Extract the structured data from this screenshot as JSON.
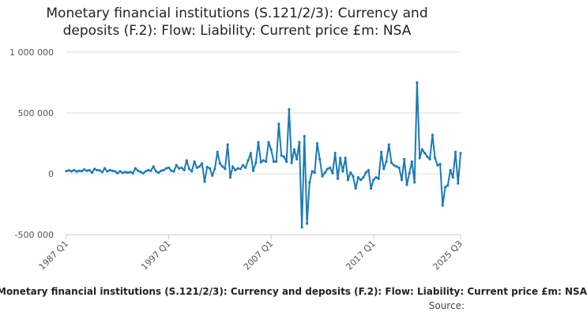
{
  "chart_data": {
    "type": "line",
    "title": "Monetary financial institutions (S.121/2/3): Currency and deposits (F.2): Flow: Liability: Current price £m: NSA",
    "caption": "Monetary financial institutions (S.121/2/3): Currency and deposits (F.2): Flow: Liability: Current price £m: NSA",
    "source_label": "Source:",
    "xlabel": "",
    "ylabel": "",
    "ylim": [
      -500000,
      1000000
    ],
    "y_ticks": [
      {
        "value": 1000000,
        "label": "1 000 000"
      },
      {
        "value": 500000,
        "label": "500 000"
      },
      {
        "value": 0,
        "label": "0"
      },
      {
        "value": -500000,
        "label": "-500 000"
      }
    ],
    "x_range": [
      "1987 Q1",
      "2025 Q3"
    ],
    "x_ticks": [
      "1987 Q1",
      "1997 Q1",
      "2007 Q1",
      "2017 Q1",
      "2025 Q3"
    ],
    "grid": {
      "horizontal": true,
      "vertical": false
    },
    "series": [
      {
        "color": "#1b7ab8",
        "points": [
          [
            "1987 Q1",
            22000
          ],
          [
            "1987 Q2",
            28000
          ],
          [
            "1987 Q3",
            20000
          ],
          [
            "1987 Q4",
            30000
          ],
          [
            "1988 Q1",
            18000
          ],
          [
            "1988 Q2",
            25000
          ],
          [
            "1988 Q3",
            22000
          ],
          [
            "1988 Q4",
            35000
          ],
          [
            "1989 Q1",
            25000
          ],
          [
            "1989 Q2",
            30000
          ],
          [
            "1989 Q3",
            10000
          ],
          [
            "1989 Q4",
            40000
          ],
          [
            "1990 Q1",
            30000
          ],
          [
            "1990 Q2",
            28000
          ],
          [
            "1990 Q3",
            15000
          ],
          [
            "1990 Q4",
            45000
          ],
          [
            "1991 Q1",
            20000
          ],
          [
            "1991 Q2",
            30000
          ],
          [
            "1991 Q3",
            25000
          ],
          [
            "1991 Q4",
            20000
          ],
          [
            "1992 Q1",
            5000
          ],
          [
            "1992 Q2",
            20000
          ],
          [
            "1992 Q3",
            8000
          ],
          [
            "1992 Q4",
            15000
          ],
          [
            "1993 Q1",
            10000
          ],
          [
            "1993 Q2",
            15000
          ],
          [
            "1993 Q3",
            5000
          ],
          [
            "1993 Q4",
            45000
          ],
          [
            "1994 Q1",
            25000
          ],
          [
            "1994 Q2",
            15000
          ],
          [
            "1994 Q3",
            5000
          ],
          [
            "1994 Q4",
            20000
          ],
          [
            "1995 Q1",
            30000
          ],
          [
            "1995 Q2",
            25000
          ],
          [
            "1995 Q3",
            60000
          ],
          [
            "1995 Q4",
            20000
          ],
          [
            "1996 Q1",
            10000
          ],
          [
            "1996 Q2",
            25000
          ],
          [
            "1996 Q3",
            30000
          ],
          [
            "1996 Q4",
            45000
          ],
          [
            "1997 Q1",
            50000
          ],
          [
            "1997 Q2",
            25000
          ],
          [
            "1997 Q3",
            20000
          ],
          [
            "1997 Q4",
            70000
          ],
          [
            "1998 Q1",
            45000
          ],
          [
            "1998 Q2",
            50000
          ],
          [
            "1998 Q3",
            30000
          ],
          [
            "1998 Q4",
            110000
          ],
          [
            "1999 Q1",
            40000
          ],
          [
            "1999 Q2",
            20000
          ],
          [
            "1999 Q3",
            100000
          ],
          [
            "1999 Q4",
            50000
          ],
          [
            "2000 Q1",
            60000
          ],
          [
            "2000 Q2",
            85000
          ],
          [
            "2000 Q3",
            -65000
          ],
          [
            "2000 Q4",
            55000
          ],
          [
            "2001 Q1",
            45000
          ],
          [
            "2001 Q2",
            -15000
          ],
          [
            "2001 Q3",
            40000
          ],
          [
            "2001 Q4",
            180000
          ],
          [
            "2002 Q1",
            85000
          ],
          [
            "2002 Q2",
            60000
          ],
          [
            "2002 Q3",
            40000
          ],
          [
            "2002 Q4",
            240000
          ],
          [
            "2003 Q1",
            -30000
          ],
          [
            "2003 Q2",
            60000
          ],
          [
            "2003 Q3",
            30000
          ],
          [
            "2003 Q4",
            45000
          ],
          [
            "2004 Q1",
            40000
          ],
          [
            "2004 Q2",
            70000
          ],
          [
            "2004 Q3",
            50000
          ],
          [
            "2004 Q4",
            110000
          ],
          [
            "2005 Q1",
            170000
          ],
          [
            "2005 Q2",
            25000
          ],
          [
            "2005 Q3",
            90000
          ],
          [
            "2005 Q4",
            260000
          ],
          [
            "2006 Q1",
            95000
          ],
          [
            "2006 Q2",
            110000
          ],
          [
            "2006 Q3",
            100000
          ],
          [
            "2006 Q4",
            260000
          ],
          [
            "2007 Q1",
            200000
          ],
          [
            "2007 Q2",
            100000
          ],
          [
            "2007 Q3",
            100000
          ],
          [
            "2007 Q4",
            410000
          ],
          [
            "2008 Q1",
            150000
          ],
          [
            "2008 Q2",
            140000
          ],
          [
            "2008 Q3",
            100000
          ],
          [
            "2008 Q4",
            530000
          ],
          [
            "2009 Q1",
            90000
          ],
          [
            "2009 Q2",
            200000
          ],
          [
            "2009 Q3",
            120000
          ],
          [
            "2009 Q4",
            260000
          ],
          [
            "2010 Q1",
            -440000
          ],
          [
            "2010 Q2",
            310000
          ],
          [
            "2010 Q3",
            -410000
          ],
          [
            "2010 Q4",
            -70000
          ],
          [
            "2011 Q1",
            20000
          ],
          [
            "2011 Q2",
            10000
          ],
          [
            "2011 Q3",
            250000
          ],
          [
            "2011 Q4",
            120000
          ],
          [
            "2012 Q1",
            -20000
          ],
          [
            "2012 Q2",
            10000
          ],
          [
            "2012 Q3",
            40000
          ],
          [
            "2012 Q4",
            50000
          ],
          [
            "2013 Q1",
            5000
          ],
          [
            "2013 Q2",
            170000
          ],
          [
            "2013 Q3",
            -40000
          ],
          [
            "2013 Q4",
            130000
          ],
          [
            "2014 Q1",
            20000
          ],
          [
            "2014 Q2",
            130000
          ],
          [
            "2014 Q3",
            -50000
          ],
          [
            "2014 Q4",
            10000
          ],
          [
            "2015 Q1",
            -20000
          ],
          [
            "2015 Q2",
            -120000
          ],
          [
            "2015 Q3",
            -30000
          ],
          [
            "2015 Q4",
            -50000
          ],
          [
            "2016 Q1",
            -30000
          ],
          [
            "2016 Q2",
            10000
          ],
          [
            "2016 Q3",
            30000
          ],
          [
            "2016 Q4",
            -120000
          ],
          [
            "2017 Q1",
            -50000
          ],
          [
            "2017 Q2",
            -30000
          ],
          [
            "2017 Q3",
            -40000
          ],
          [
            "2017 Q4",
            180000
          ],
          [
            "2018 Q1",
            40000
          ],
          [
            "2018 Q2",
            100000
          ],
          [
            "2018 Q3",
            240000
          ],
          [
            "2018 Q4",
            90000
          ],
          [
            "2019 Q1",
            70000
          ],
          [
            "2019 Q2",
            60000
          ],
          [
            "2019 Q3",
            50000
          ],
          [
            "2019 Q4",
            -50000
          ],
          [
            "2020 Q1",
            120000
          ],
          [
            "2020 Q2",
            -90000
          ],
          [
            "2020 Q3",
            5000
          ],
          [
            "2020 Q4",
            100000
          ],
          [
            "2021 Q1",
            -70000
          ],
          [
            "2021 Q2",
            750000
          ],
          [
            "2021 Q3",
            130000
          ],
          [
            "2021 Q4",
            200000
          ],
          [
            "2022 Q1",
            170000
          ],
          [
            "2022 Q2",
            140000
          ],
          [
            "2022 Q3",
            120000
          ],
          [
            "2022 Q4",
            320000
          ],
          [
            "2023 Q1",
            130000
          ],
          [
            "2023 Q2",
            70000
          ],
          [
            "2023 Q3",
            80000
          ],
          [
            "2023 Q4",
            -260000
          ],
          [
            "2024 Q1",
            -110000
          ],
          [
            "2024 Q2",
            -95000
          ],
          [
            "2024 Q3",
            30000
          ],
          [
            "2024 Q4",
            -30000
          ],
          [
            "2025 Q1",
            180000
          ],
          [
            "2025 Q2",
            -80000
          ],
          [
            "2025 Q3",
            170000
          ]
        ]
      }
    ]
  }
}
